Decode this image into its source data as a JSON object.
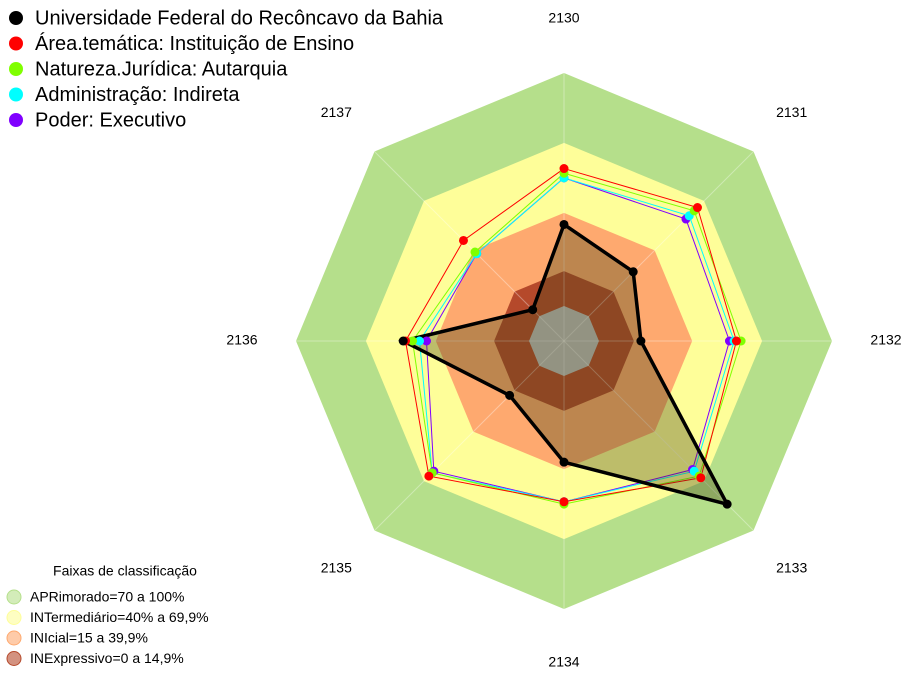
{
  "chart_data": {
    "type": "radar",
    "categories": [
      "2130",
      "2131",
      "2132",
      "2133",
      "2134",
      "2135",
      "2136",
      "2137"
    ],
    "rlim": [
      -15,
      100
    ],
    "series": [
      {
        "name": "Universidade Federal do Recôncavo da Bahia",
        "color": "#000000",
        "values": [
          35,
          27,
          18,
          84,
          37,
          18,
          54,
          4
        ]
      },
      {
        "name": "Área.temática: Instituição de Ensino",
        "color": "#ff0000",
        "values": [
          59,
          66,
          59,
          68,
          54,
          67,
          53,
          46
        ]
      },
      {
        "name": "Natureza.Jurídica: Autarquia",
        "color": "#80ff00",
        "values": [
          57,
          64,
          61,
          67,
          55,
          65,
          50,
          39
        ]
      },
      {
        "name": "Administração: Indireta",
        "color": "#00ffff",
        "values": [
          55,
          61,
          58,
          64,
          54,
          65,
          47,
          38
        ]
      },
      {
        "name": "Poder: Executivo",
        "color": "#8000ff",
        "values": [
          55,
          59,
          56,
          63,
          54,
          64,
          44,
          38
        ]
      }
    ],
    "bands_title": "Faixas de classificação",
    "bands": [
      {
        "label": "APRimorado=70 a 100%",
        "from": 70,
        "to": 100,
        "color": "#b5df8b"
      },
      {
        "label": "INTermediário=40% a 69,9%",
        "from": 40,
        "to": 70,
        "color": "#fefe99"
      },
      {
        "label": "INIcial=15 a 39,9%",
        "from": 15,
        "to": 40,
        "color": "#fea96f"
      },
      {
        "label": "INExpressivo=0 a 14,9%",
        "from": 0,
        "to": 15,
        "color": "#b5492b"
      }
    ]
  }
}
